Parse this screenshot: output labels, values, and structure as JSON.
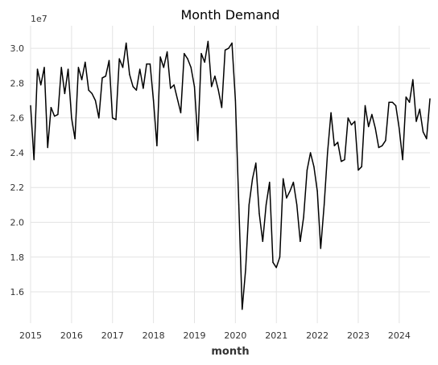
{
  "chart_data": {
    "type": "line",
    "title": "Month Demand",
    "xlabel": "month",
    "ylabel": "",
    "y_scale_label": "1e7",
    "y_multiplier": 10000000,
    "grid": true,
    "line_color": "#000000",
    "xlim": [
      "2015-01",
      "2024-10"
    ],
    "ylim": [
      1.42,
      3.13
    ],
    "x_ticks": [
      "2015",
      "2016",
      "2017",
      "2018",
      "2019",
      "2020",
      "2021",
      "2022",
      "2023",
      "2024"
    ],
    "y_ticks": [
      "1.6",
      "1.8",
      "2.0",
      "2.2",
      "2.4",
      "2.6",
      "2.8",
      "3.0"
    ],
    "series": [
      {
        "x": [
          "2015-01",
          "2015-02",
          "2015-03",
          "2015-04",
          "2015-05",
          "2015-06",
          "2015-07",
          "2015-08",
          "2015-09",
          "2015-10",
          "2015-11",
          "2015-12",
          "2016-01",
          "2016-02",
          "2016-03",
          "2016-04",
          "2016-05",
          "2016-06",
          "2016-07",
          "2016-08",
          "2016-09",
          "2016-10",
          "2016-11",
          "2016-12",
          "2017-01",
          "2017-02",
          "2017-03",
          "2017-04",
          "2017-05",
          "2017-06",
          "2017-07",
          "2017-08",
          "2017-09",
          "2017-10",
          "2017-11",
          "2017-12",
          "2018-01",
          "2018-02",
          "2018-03",
          "2018-04",
          "2018-05",
          "2018-06",
          "2018-07",
          "2018-08",
          "2018-09",
          "2018-10",
          "2018-11",
          "2018-12",
          "2019-01",
          "2019-02",
          "2019-03",
          "2019-04",
          "2019-05",
          "2019-06",
          "2019-07",
          "2019-08",
          "2019-09",
          "2019-10",
          "2019-11",
          "2019-12",
          "2020-01",
          "2020-02",
          "2020-03",
          "2020-04",
          "2020-05",
          "2020-06",
          "2020-07",
          "2020-08",
          "2020-09",
          "2020-10",
          "2020-11",
          "2020-12",
          "2021-01",
          "2021-02",
          "2021-03",
          "2021-04",
          "2021-05",
          "2021-06",
          "2021-07",
          "2021-08",
          "2021-09",
          "2021-10",
          "2021-11",
          "2021-12",
          "2022-01",
          "2022-02",
          "2022-03",
          "2022-04",
          "2022-05",
          "2022-06",
          "2022-07",
          "2022-08",
          "2022-09",
          "2022-10",
          "2022-11",
          "2022-12",
          "2023-01",
          "2023-02",
          "2023-03",
          "2023-04",
          "2023-05",
          "2023-06",
          "2023-07",
          "2023-08",
          "2023-09",
          "2023-10",
          "2023-11",
          "2023-12",
          "2024-01",
          "2024-02",
          "2024-03",
          "2024-04",
          "2024-05",
          "2024-06",
          "2024-07",
          "2024-08",
          "2024-09",
          "2024-10"
        ],
        "values": [
          2.67,
          2.36,
          2.88,
          2.79,
          2.89,
          2.43,
          2.66,
          2.61,
          2.62,
          2.89,
          2.74,
          2.88,
          2.6,
          2.48,
          2.89,
          2.82,
          2.92,
          2.76,
          2.74,
          2.7,
          2.6,
          2.83,
          2.84,
          2.93,
          2.6,
          2.59,
          2.94,
          2.89,
          3.03,
          2.85,
          2.78,
          2.76,
          2.88,
          2.77,
          2.91,
          2.91,
          2.7,
          2.44,
          2.95,
          2.89,
          2.98,
          2.77,
          2.79,
          2.71,
          2.63,
          2.97,
          2.94,
          2.89,
          2.78,
          2.47,
          2.97,
          2.92,
          3.04,
          2.78,
          2.84,
          2.76,
          2.66,
          2.99,
          3.0,
          3.03,
          2.7,
          2.1,
          1.5,
          1.73,
          2.1,
          2.25,
          2.34,
          2.05,
          1.89,
          2.1,
          2.23,
          1.77,
          1.74,
          1.8,
          2.25,
          2.14,
          2.18,
          2.23,
          2.1,
          1.89,
          2.03,
          2.3,
          2.4,
          2.32,
          2.18,
          1.85,
          2.1,
          2.4,
          2.63,
          2.44,
          2.46,
          2.35,
          2.36,
          2.6,
          2.56,
          2.58,
          2.3,
          2.32,
          2.67,
          2.55,
          2.62,
          2.54,
          2.43,
          2.44,
          2.47,
          2.69,
          2.69,
          2.67,
          2.54,
          2.36,
          2.72,
          2.69,
          2.82,
          2.58,
          2.65,
          2.52,
          2.48,
          2.71
        ]
      }
    ]
  }
}
